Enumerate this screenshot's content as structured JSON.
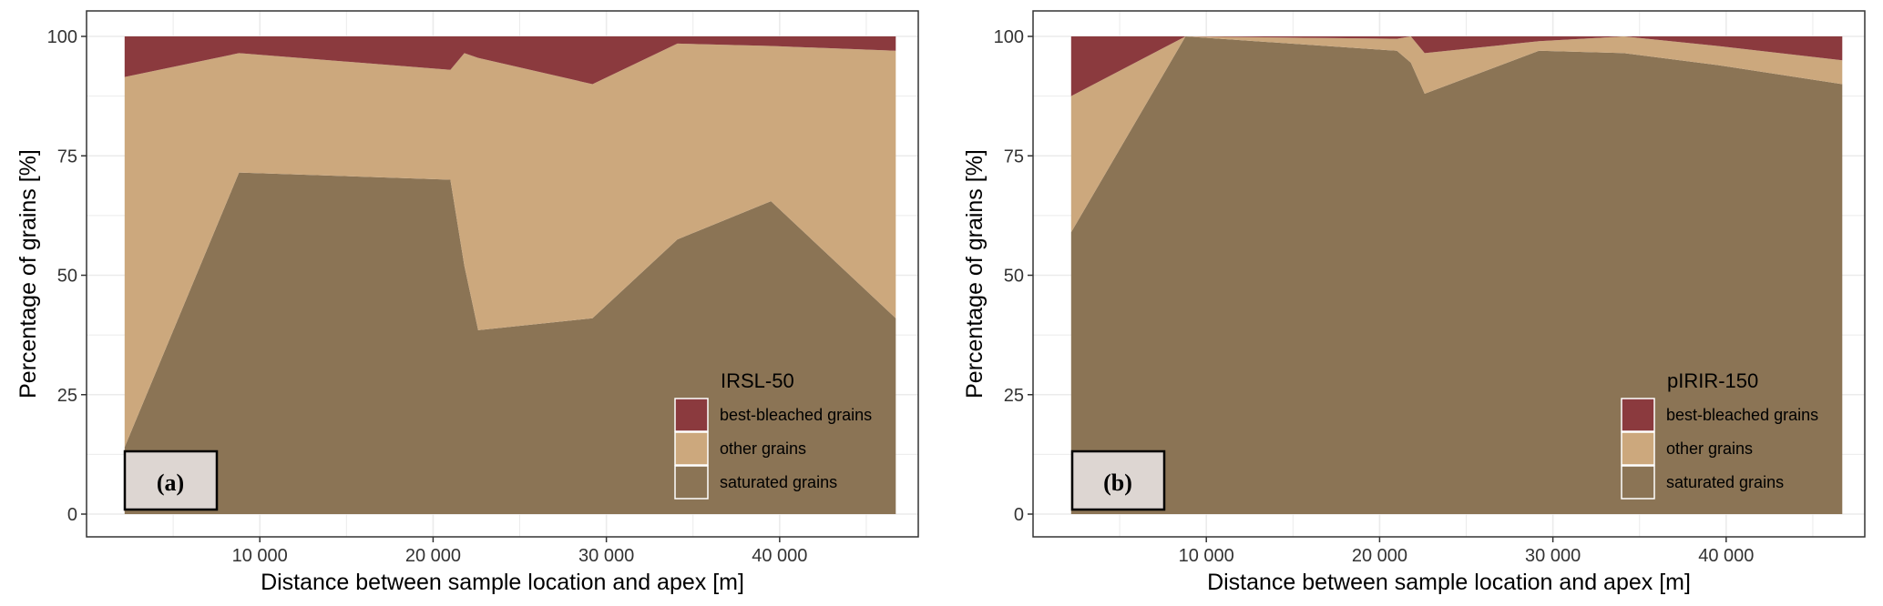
{
  "colors": {
    "best_bleached": "#8b3a3e",
    "other": "#cca87d",
    "saturated": "#8b7455",
    "panel_border": "#333333",
    "grid": "#ebebeb",
    "tag_box": "#ddd6d2"
  },
  "chart_data": [
    {
      "type": "area",
      "stacked": true,
      "panel_tag": "(a)",
      "xlabel": "Distance between sample location and apex [m]",
      "ylabel": "Percentage of grains [%]",
      "xlim": [
        0,
        48000
      ],
      "ylim": [
        0,
        100
      ],
      "x_ticks": [
        10000,
        20000,
        30000,
        40000
      ],
      "x_tick_labels": [
        "10 000",
        "20 000",
        "30 000",
        "40 000"
      ],
      "y_ticks": [
        0,
        25,
        50,
        75,
        100
      ],
      "y_tick_labels": [
        "0",
        "25",
        "50",
        "75",
        "100"
      ],
      "grid": true,
      "legend": {
        "title": "IRSL-50",
        "placement": "bottom-right"
      },
      "x": [
        2200,
        8800,
        21000,
        21800,
        22600,
        29200,
        34100,
        39500,
        46700
      ],
      "series": [
        {
          "name": "saturated grains",
          "color_key": "saturated",
          "values": [
            14,
            71.5,
            70,
            52,
            38.5,
            41,
            57.5,
            65.5,
            41
          ]
        },
        {
          "name": "other grains",
          "color_key": "other",
          "values": [
            77.5,
            25,
            23,
            44.5,
            57,
            49,
            41,
            32.5,
            56
          ]
        },
        {
          "name": "best-bleached grains",
          "color_key": "best_bleached",
          "values": [
            8.5,
            3.5,
            7,
            3.5,
            4.5,
            10,
            1.5,
            2,
            3
          ]
        }
      ]
    },
    {
      "type": "area",
      "stacked": true,
      "panel_tag": "(b)",
      "xlabel": "Distance between sample location and apex [m]",
      "ylabel": "Percentage of grains [%]",
      "xlim": [
        0,
        48000
      ],
      "ylim": [
        0,
        100
      ],
      "x_ticks": [
        10000,
        20000,
        30000,
        40000
      ],
      "x_tick_labels": [
        "10 000",
        "20 000",
        "30 000",
        "40 000"
      ],
      "y_ticks": [
        0,
        25,
        50,
        75,
        100
      ],
      "y_tick_labels": [
        "0",
        "25",
        "50",
        "75",
        "100"
      ],
      "grid": true,
      "legend": {
        "title": "pIRIR-150",
        "placement": "bottom-right"
      },
      "x": [
        2200,
        8800,
        21000,
        21800,
        22600,
        29200,
        34100,
        39500,
        46700
      ],
      "series": [
        {
          "name": "saturated grains",
          "color_key": "saturated",
          "values": [
            59,
            100,
            97,
            94.5,
            88,
            97,
            96.5,
            94,
            90
          ]
        },
        {
          "name": "other grains",
          "color_key": "other",
          "values": [
            28.5,
            0,
            2.5,
            5.5,
            8.5,
            2,
            3.5,
            4,
            5
          ]
        },
        {
          "name": "best-bleached grains",
          "color_key": "best_bleached",
          "values": [
            12.5,
            0,
            0.5,
            0,
            3.5,
            1,
            0,
            2,
            5
          ]
        }
      ]
    }
  ]
}
